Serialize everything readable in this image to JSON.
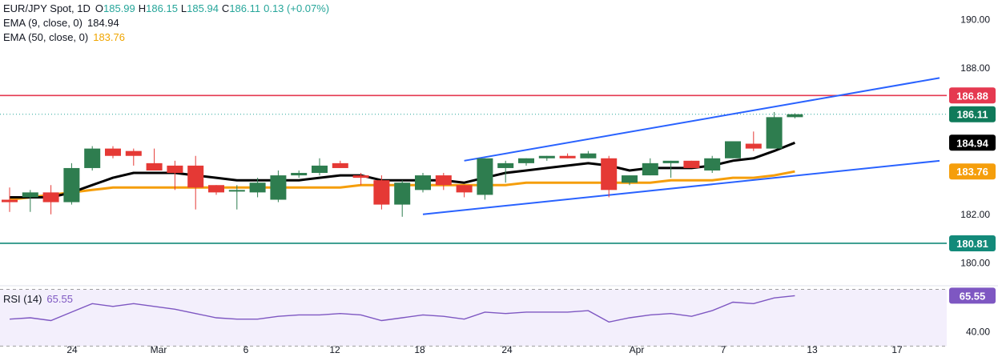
{
  "legend": {
    "symbol": "EUR/JPY Spot, 1D",
    "open_k": "O",
    "open": "185.99",
    "high_k": "H",
    "high": "186.15",
    "low_k": "L",
    "low": "185.94",
    "close_k": "C",
    "close": "186.11",
    "change": "0.13 (+0.07%)",
    "ema9_label": "EMA (9, close, 0)",
    "ema9_value": "184.94",
    "ema50_label": "EMA (50, close, 0)",
    "ema50_value": "183.76"
  },
  "rsi_legend": {
    "label": "RSI (14)",
    "value": "65.55"
  },
  "colors": {
    "up": "#2e7d4f",
    "down": "#e53935",
    "ema9": "#000000",
    "ema50": "#f59e0b",
    "channel": "#2962ff",
    "resistance": "#e53950",
    "support": "#138a7a",
    "rsi": "#7e57c2"
  },
  "chart_data": [
    {
      "type": "candlestick",
      "x_tick_labels": [
        "24",
        "Mar",
        "6",
        "12",
        "18",
        "24",
        "Apr",
        "7",
        "13",
        "17"
      ],
      "y_tick_labels": [
        "190.00",
        "188.00",
        "182.00",
        "180.00"
      ],
      "y_range": [
        179.1,
        190.8
      ],
      "candles": [
        {
          "o": 182.6,
          "h": 183.1,
          "l": 182.1,
          "c": 182.5
        },
        {
          "o": 182.7,
          "h": 183.0,
          "l": 182.1,
          "c": 182.9
        },
        {
          "o": 182.9,
          "h": 183.2,
          "l": 182.0,
          "c": 182.5
        },
        {
          "o": 182.5,
          "h": 184.1,
          "l": 182.4,
          "c": 183.9
        },
        {
          "o": 183.9,
          "h": 184.8,
          "l": 183.8,
          "c": 184.7
        },
        {
          "o": 184.7,
          "h": 184.8,
          "l": 184.3,
          "c": 184.4
        },
        {
          "o": 184.6,
          "h": 184.7,
          "l": 184.0,
          "c": 184.4
        },
        {
          "o": 184.1,
          "h": 184.7,
          "l": 183.8,
          "c": 183.8
        },
        {
          "o": 184.0,
          "h": 184.2,
          "l": 183.0,
          "c": 183.7
        },
        {
          "o": 184.0,
          "h": 184.4,
          "l": 182.2,
          "c": 183.1
        },
        {
          "o": 183.2,
          "h": 183.2,
          "l": 182.8,
          "c": 182.9
        },
        {
          "o": 183.0,
          "h": 183.2,
          "l": 182.2,
          "c": 183.0
        },
        {
          "o": 182.9,
          "h": 183.5,
          "l": 182.7,
          "c": 183.3
        },
        {
          "o": 182.6,
          "h": 183.8,
          "l": 182.5,
          "c": 183.6
        },
        {
          "o": 183.6,
          "h": 183.8,
          "l": 183.5,
          "c": 183.7
        },
        {
          "o": 183.7,
          "h": 184.3,
          "l": 183.6,
          "c": 184.0
        },
        {
          "o": 184.1,
          "h": 184.2,
          "l": 183.9,
          "c": 183.9
        },
        {
          "o": 183.6,
          "h": 183.7,
          "l": 183.2,
          "c": 183.5
        },
        {
          "o": 183.4,
          "h": 183.6,
          "l": 182.2,
          "c": 182.4
        },
        {
          "o": 182.4,
          "h": 183.4,
          "l": 181.9,
          "c": 183.3
        },
        {
          "o": 183.0,
          "h": 183.7,
          "l": 182.9,
          "c": 183.6
        },
        {
          "o": 183.6,
          "h": 183.7,
          "l": 183.0,
          "c": 183.2
        },
        {
          "o": 183.2,
          "h": 183.2,
          "l": 182.7,
          "c": 182.9
        },
        {
          "o": 182.8,
          "h": 184.3,
          "l": 182.6,
          "c": 184.3
        },
        {
          "o": 183.9,
          "h": 184.2,
          "l": 183.3,
          "c": 184.1
        },
        {
          "o": 184.1,
          "h": 184.3,
          "l": 184.0,
          "c": 184.3
        },
        {
          "o": 184.3,
          "h": 184.4,
          "l": 184.2,
          "c": 184.4
        },
        {
          "o": 184.4,
          "h": 184.5,
          "l": 184.3,
          "c": 184.3
        },
        {
          "o": 184.3,
          "h": 184.6,
          "l": 184.3,
          "c": 184.5
        },
        {
          "o": 184.3,
          "h": 184.4,
          "l": 182.7,
          "c": 183.0
        },
        {
          "o": 183.3,
          "h": 183.6,
          "l": 183.2,
          "c": 183.6
        },
        {
          "o": 183.6,
          "h": 184.3,
          "l": 183.6,
          "c": 184.1
        },
        {
          "o": 184.1,
          "h": 184.2,
          "l": 183.5,
          "c": 184.2
        },
        {
          "o": 184.2,
          "h": 184.2,
          "l": 183.9,
          "c": 183.9
        },
        {
          "o": 183.8,
          "h": 184.4,
          "l": 183.7,
          "c": 184.3
        },
        {
          "o": 184.3,
          "h": 185.0,
          "l": 184.3,
          "c": 185.0
        },
        {
          "o": 184.9,
          "h": 185.4,
          "l": 184.6,
          "c": 184.7
        },
        {
          "o": 184.7,
          "h": 186.2,
          "l": 184.7,
          "c": 185.99
        },
        {
          "o": 185.99,
          "h": 186.15,
          "l": 185.94,
          "c": 186.11
        }
      ],
      "ema9": [
        182.7,
        182.7,
        182.7,
        182.9,
        183.2,
        183.5,
        183.7,
        183.7,
        183.7,
        183.6,
        183.5,
        183.4,
        183.4,
        183.4,
        183.4,
        183.5,
        183.6,
        183.6,
        183.4,
        183.4,
        183.4,
        183.4,
        183.3,
        183.5,
        183.7,
        183.8,
        183.9,
        184.0,
        184.1,
        184.0,
        183.8,
        183.9,
        183.9,
        183.9,
        184.0,
        184.2,
        184.3,
        184.6,
        184.94
      ],
      "ema50": [
        182.6,
        182.7,
        182.8,
        182.9,
        183.0,
        183.1,
        183.1,
        183.1,
        183.1,
        183.1,
        183.1,
        183.1,
        183.1,
        183.1,
        183.1,
        183.1,
        183.1,
        183.2,
        183.2,
        183.2,
        183.2,
        183.2,
        183.2,
        183.2,
        183.2,
        183.3,
        183.3,
        183.3,
        183.3,
        183.3,
        183.3,
        183.3,
        183.4,
        183.4,
        183.4,
        183.5,
        183.5,
        183.6,
        183.76
      ],
      "channel_upper": {
        "from": [
          22,
          184.2
        ],
        "to": [
          45,
          187.6
        ]
      },
      "channel_lower": {
        "from": [
          20,
          182.0
        ],
        "to": [
          45,
          184.2
        ]
      },
      "horizontal_levels": [
        {
          "value": 186.88,
          "label": "186.88",
          "color": "#e53950"
        },
        {
          "value": 180.81,
          "label": "180.81",
          "color": "#138a7a"
        }
      ],
      "price_labels": [
        {
          "value": 186.11,
          "label": "186.11",
          "color": "#0f7a5a"
        },
        {
          "value": 184.94,
          "label": "184.94",
          "color": "#000000"
        },
        {
          "value": 183.76,
          "label": "183.76",
          "color": "#f59e0b"
        }
      ]
    },
    {
      "type": "line",
      "name": "RSI (14)",
      "y_tick_labels": [
        "40.00"
      ],
      "y_range": [
        37,
        72
      ],
      "bands": [
        70,
        30
      ],
      "values": [
        49,
        50,
        48,
        54,
        60,
        58,
        60,
        58,
        56,
        53,
        50,
        49,
        49,
        51,
        52,
        52,
        53,
        52,
        48,
        50,
        52,
        51,
        49,
        54,
        53,
        54,
        54,
        54,
        55,
        47,
        50,
        52,
        53,
        51,
        55,
        61,
        60,
        64,
        65.55
      ],
      "last_label": "65.55"
    }
  ]
}
